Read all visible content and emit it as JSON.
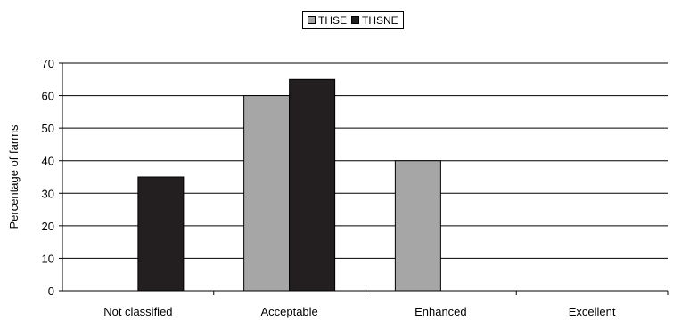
{
  "chart_data": {
    "type": "bar",
    "categories": [
      "Not classified",
      "Acceptable",
      "Enhanced",
      "Excellent"
    ],
    "series": [
      {
        "name": "THSE",
        "values": [
          0,
          60,
          40,
          0
        ],
        "color": "#a6a6a6"
      },
      {
        "name": "THSNE",
        "values": [
          35,
          65,
          0,
          0
        ],
        "color": "#231f20"
      }
    ],
    "ylabel": "Percentage of farms",
    "xlabel": "",
    "ylim": [
      0,
      70
    ],
    "yticks": [
      "0",
      "10",
      "20",
      "30",
      "40",
      "50",
      "60",
      "70"
    ],
    "grid": true,
    "legend_position": "top-center"
  }
}
